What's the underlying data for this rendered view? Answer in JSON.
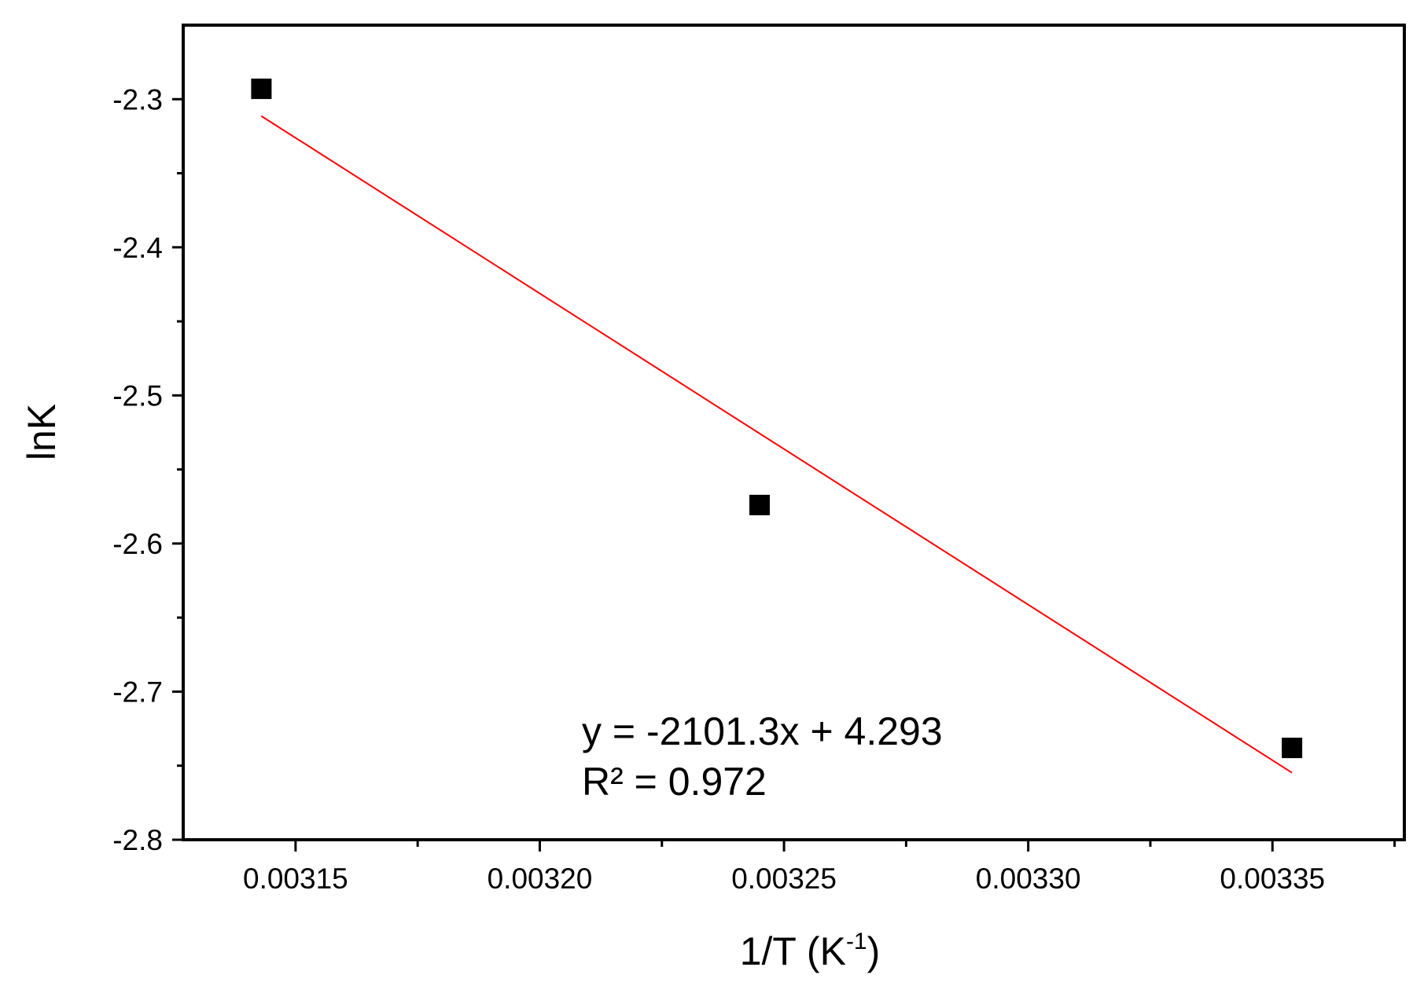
{
  "chart_data": {
    "type": "scatter",
    "title": "",
    "xlabel": "1/T (K",
    "xlabel_sup": "-1",
    "xlabel_close": ")",
    "ylabel": "lnK",
    "xlim": [
      0.003127,
      0.003377
    ],
    "ylim": [
      -2.8,
      -2.25
    ],
    "x_ticks": [
      0.00315,
      0.0032,
      0.00325,
      0.0033,
      0.00335
    ],
    "x_tick_labels": [
      "0.00315",
      "0.00320",
      "0.00325",
      "0.00330",
      "0.00335"
    ],
    "y_ticks": [
      -2.3,
      -2.4,
      -2.5,
      -2.6,
      -2.7,
      -2.8
    ],
    "y_tick_labels": [
      "-2.3",
      "-2.4",
      "-2.5",
      "-2.6",
      "-2.7",
      "-2.8"
    ],
    "grid": false,
    "series": [
      {
        "points": [
          {
            "x": 0.003143,
            "y": -2.293
          },
          {
            "x": 0.003245,
            "y": -2.574
          },
          {
            "x": 0.003354,
            "y": -2.738
          }
        ],
        "marker": "square",
        "color": "#000000"
      }
    ],
    "fit_line": {
      "color": "#ff0000",
      "slope": -2101.3,
      "intercept": 4.293,
      "x_range": [
        0.003143,
        0.003354
      ]
    },
    "annotations": [
      "y = -2101.3x + 4.293",
      "R² = 0.972"
    ]
  }
}
